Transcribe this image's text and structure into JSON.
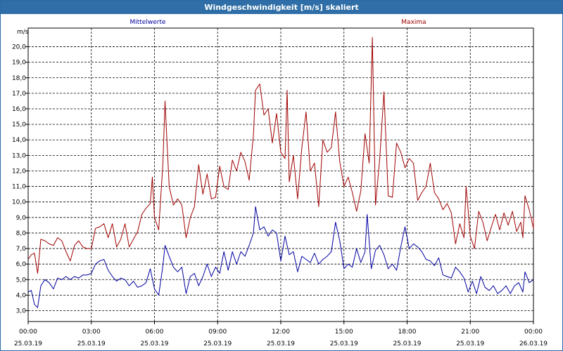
{
  "window": {
    "title": "Windgeschwindigkeit [m/s] skaliert"
  },
  "chart_data": {
    "type": "line",
    "title": "Windgeschwindigkeit [m/s] skaliert",
    "ylabel": "m/s",
    "xlabel": "",
    "ylim": [
      2.3,
      21.2
    ],
    "xlim": [
      0,
      24
    ],
    "grid": true,
    "legend_placement": "top",
    "yticks": [
      3.0,
      4.0,
      5.0,
      6.0,
      7.0,
      8.0,
      9.0,
      10.0,
      11.0,
      12.0,
      13.0,
      14.0,
      15.0,
      16.0,
      17.0,
      18.0,
      19.0,
      20.0
    ],
    "ytick_labels": [
      "3,0",
      "4,0",
      "5,0",
      "6,0",
      "7,0",
      "8,0",
      "9,0",
      "10,0",
      "11,0",
      "12,0",
      "13,0",
      "14,0",
      "15,0",
      "16,0",
      "17,0",
      "18,0",
      "19,0",
      "20,0"
    ],
    "xticks": [
      {
        "hours": 0,
        "time": "00:00",
        "date": "25.03.19"
      },
      {
        "hours": 3,
        "time": "03:00",
        "date": "25.03.19"
      },
      {
        "hours": 6,
        "time": "06:00",
        "date": "25.03.19"
      },
      {
        "hours": 9,
        "time": "09:00",
        "date": "25.03.19"
      },
      {
        "hours": 12,
        "time": "12:00",
        "date": "25.03.19"
      },
      {
        "hours": 15,
        "time": "15:00",
        "date": "25.03.19"
      },
      {
        "hours": 18,
        "time": "18:00",
        "date": "25.03.19"
      },
      {
        "hours": 21,
        "time": "21:00",
        "date": "25.03.19"
      },
      {
        "hours": 24,
        "time": "00:00",
        "date": "26.03.19"
      }
    ],
    "series": [
      {
        "name": "Mittelwerte",
        "color": "#0000a0",
        "points": [
          [
            0,
            4.2
          ],
          [
            0.15,
            4.3
          ],
          [
            0.3,
            3.4
          ],
          [
            0.45,
            3.2
          ],
          [
            0.6,
            4.6
          ],
          [
            0.8,
            5.0
          ],
          [
            1.0,
            4.8
          ],
          [
            1.2,
            4.4
          ],
          [
            1.4,
            5.1
          ],
          [
            1.6,
            5.0
          ],
          [
            1.8,
            5.2
          ],
          [
            2.0,
            5.0
          ],
          [
            2.2,
            5.2
          ],
          [
            2.4,
            5.1
          ],
          [
            2.6,
            5.3
          ],
          [
            2.8,
            5.3
          ],
          [
            3.0,
            5.4
          ],
          [
            3.2,
            6.0
          ],
          [
            3.4,
            6.2
          ],
          [
            3.6,
            6.3
          ],
          [
            3.8,
            5.6
          ],
          [
            4.0,
            5.2
          ],
          [
            4.2,
            4.9
          ],
          [
            4.4,
            5.1
          ],
          [
            4.6,
            5.0
          ],
          [
            4.8,
            4.6
          ],
          [
            5.0,
            4.9
          ],
          [
            5.2,
            4.5
          ],
          [
            5.4,
            4.6
          ],
          [
            5.6,
            4.8
          ],
          [
            5.8,
            5.7
          ],
          [
            6.0,
            4.4
          ],
          [
            6.2,
            4.0
          ],
          [
            6.4,
            5.9
          ],
          [
            6.5,
            7.2
          ],
          [
            6.7,
            6.5
          ],
          [
            6.9,
            5.8
          ],
          [
            7.1,
            5.5
          ],
          [
            7.3,
            5.8
          ],
          [
            7.5,
            4.1
          ],
          [
            7.7,
            5.2
          ],
          [
            7.9,
            5.4
          ],
          [
            8.1,
            4.6
          ],
          [
            8.3,
            5.2
          ],
          [
            8.5,
            6.0
          ],
          [
            8.7,
            5.2
          ],
          [
            8.9,
            5.8
          ],
          [
            9.1,
            5.4
          ],
          [
            9.3,
            6.8
          ],
          [
            9.5,
            5.6
          ],
          [
            9.7,
            6.8
          ],
          [
            9.9,
            6.0
          ],
          [
            10.1,
            6.8
          ],
          [
            10.3,
            6.5
          ],
          [
            10.5,
            7.2
          ],
          [
            10.7,
            8.0
          ],
          [
            10.8,
            9.7
          ],
          [
            11.0,
            8.2
          ],
          [
            11.2,
            8.4
          ],
          [
            11.4,
            7.8
          ],
          [
            11.6,
            8.2
          ],
          [
            11.8,
            8.0
          ],
          [
            12.0,
            6.2
          ],
          [
            12.2,
            7.8
          ],
          [
            12.4,
            6.6
          ],
          [
            12.6,
            6.8
          ],
          [
            12.8,
            5.5
          ],
          [
            13.0,
            6.5
          ],
          [
            13.2,
            6.3
          ],
          [
            13.4,
            6.1
          ],
          [
            13.6,
            6.7
          ],
          [
            13.8,
            6.0
          ],
          [
            14.0,
            6.3
          ],
          [
            14.2,
            6.5
          ],
          [
            14.4,
            6.8
          ],
          [
            14.6,
            8.7
          ],
          [
            14.8,
            7.5
          ],
          [
            15.0,
            5.7
          ],
          [
            15.2,
            6.0
          ],
          [
            15.4,
            5.8
          ],
          [
            15.6,
            7.0
          ],
          [
            15.8,
            6.1
          ],
          [
            16.0,
            6.8
          ],
          [
            16.1,
            9.2
          ],
          [
            16.3,
            5.7
          ],
          [
            16.5,
            6.9
          ],
          [
            16.7,
            7.2
          ],
          [
            16.9,
            6.6
          ],
          [
            17.1,
            5.7
          ],
          [
            17.3,
            6.0
          ],
          [
            17.5,
            5.6
          ],
          [
            17.7,
            7.1
          ],
          [
            17.9,
            8.4
          ],
          [
            18.1,
            7.0
          ],
          [
            18.3,
            7.3
          ],
          [
            18.5,
            7.1
          ],
          [
            18.7,
            6.8
          ],
          [
            18.9,
            6.3
          ],
          [
            19.1,
            6.2
          ],
          [
            19.3,
            5.9
          ],
          [
            19.5,
            6.4
          ],
          [
            19.7,
            5.3
          ],
          [
            19.9,
            5.2
          ],
          [
            20.1,
            5.1
          ],
          [
            20.3,
            5.8
          ],
          [
            20.5,
            5.5
          ],
          [
            20.7,
            5.1
          ],
          [
            20.9,
            4.2
          ],
          [
            21.1,
            4.9
          ],
          [
            21.3,
            4.1
          ],
          [
            21.5,
            5.2
          ],
          [
            21.7,
            4.5
          ],
          [
            21.9,
            4.3
          ],
          [
            22.1,
            4.6
          ],
          [
            22.3,
            4.1
          ],
          [
            22.5,
            4.3
          ],
          [
            22.7,
            4.6
          ],
          [
            22.9,
            4.1
          ],
          [
            23.1,
            4.6
          ],
          [
            23.3,
            4.8
          ],
          [
            23.5,
            4.2
          ],
          [
            23.6,
            5.5
          ],
          [
            23.8,
            4.8
          ],
          [
            24.0,
            5.0
          ]
        ]
      },
      {
        "name": "Maxima",
        "color": "#a00000",
        "points": [
          [
            0,
            6.3
          ],
          [
            0.15,
            6.6
          ],
          [
            0.3,
            6.7
          ],
          [
            0.45,
            5.4
          ],
          [
            0.6,
            7.6
          ],
          [
            0.8,
            7.5
          ],
          [
            1.0,
            7.3
          ],
          [
            1.2,
            7.2
          ],
          [
            1.4,
            7.7
          ],
          [
            1.6,
            7.5
          ],
          [
            1.8,
            6.8
          ],
          [
            2.0,
            6.2
          ],
          [
            2.2,
            7.2
          ],
          [
            2.4,
            7.5
          ],
          [
            2.6,
            7.1
          ],
          [
            2.8,
            7.0
          ],
          [
            3.0,
            7.0
          ],
          [
            3.2,
            8.3
          ],
          [
            3.4,
            8.4
          ],
          [
            3.6,
            8.6
          ],
          [
            3.8,
            7.7
          ],
          [
            4.0,
            8.6
          ],
          [
            4.2,
            7.1
          ],
          [
            4.4,
            7.6
          ],
          [
            4.6,
            8.6
          ],
          [
            4.8,
            7.1
          ],
          [
            5.0,
            7.6
          ],
          [
            5.2,
            8.1
          ],
          [
            5.4,
            9.2
          ],
          [
            5.6,
            9.6
          ],
          [
            5.8,
            9.9
          ],
          [
            5.9,
            11.6
          ],
          [
            6.0,
            9.0
          ],
          [
            6.2,
            8.2
          ],
          [
            6.4,
            12.5
          ],
          [
            6.5,
            16.5
          ],
          [
            6.7,
            11.0
          ],
          [
            6.9,
            9.8
          ],
          [
            7.1,
            10.2
          ],
          [
            7.3,
            9.8
          ],
          [
            7.5,
            7.7
          ],
          [
            7.7,
            9.0
          ],
          [
            7.9,
            9.7
          ],
          [
            8.1,
            12.4
          ],
          [
            8.3,
            10.5
          ],
          [
            8.5,
            11.8
          ],
          [
            8.7,
            10.2
          ],
          [
            8.9,
            10.3
          ],
          [
            9.1,
            12.3
          ],
          [
            9.3,
            11.0
          ],
          [
            9.5,
            10.8
          ],
          [
            9.7,
            12.7
          ],
          [
            9.9,
            12.0
          ],
          [
            10.1,
            13.2
          ],
          [
            10.3,
            12.6
          ],
          [
            10.5,
            11.4
          ],
          [
            10.7,
            14.3
          ],
          [
            10.8,
            17.2
          ],
          [
            11.0,
            17.6
          ],
          [
            11.2,
            15.6
          ],
          [
            11.4,
            16.0
          ],
          [
            11.6,
            13.8
          ],
          [
            11.8,
            15.7
          ],
          [
            12.0,
            13.2
          ],
          [
            12.2,
            12.8
          ],
          [
            12.3,
            17.2
          ],
          [
            12.4,
            11.3
          ],
          [
            12.6,
            13.0
          ],
          [
            12.8,
            10.2
          ],
          [
            13.0,
            13.5
          ],
          [
            13.2,
            15.8
          ],
          [
            13.4,
            12.0
          ],
          [
            13.6,
            12.5
          ],
          [
            13.8,
            9.7
          ],
          [
            14.0,
            14.0
          ],
          [
            14.2,
            13.2
          ],
          [
            14.4,
            13.5
          ],
          [
            14.6,
            15.8
          ],
          [
            14.8,
            12.6
          ],
          [
            15.0,
            11.0
          ],
          [
            15.2,
            11.6
          ],
          [
            15.4,
            10.6
          ],
          [
            15.6,
            9.4
          ],
          [
            15.8,
            10.7
          ],
          [
            16.0,
            14.4
          ],
          [
            16.2,
            12.5
          ],
          [
            16.35,
            20.6
          ],
          [
            16.5,
            9.8
          ],
          [
            16.7,
            12.8
          ],
          [
            16.9,
            17.1
          ],
          [
            17.1,
            10.4
          ],
          [
            17.3,
            10.3
          ],
          [
            17.5,
            13.8
          ],
          [
            17.7,
            13.2
          ],
          [
            17.9,
            12.2
          ],
          [
            18.1,
            12.8
          ],
          [
            18.3,
            12.5
          ],
          [
            18.5,
            10.1
          ],
          [
            18.7,
            10.6
          ],
          [
            18.9,
            11.0
          ],
          [
            19.1,
            12.5
          ],
          [
            19.3,
            10.6
          ],
          [
            19.5,
            10.2
          ],
          [
            19.7,
            9.5
          ],
          [
            19.9,
            9.9
          ],
          [
            20.1,
            9.3
          ],
          [
            20.3,
            7.3
          ],
          [
            20.5,
            8.6
          ],
          [
            20.7,
            7.7
          ],
          [
            20.8,
            11.0
          ],
          [
            21.0,
            7.8
          ],
          [
            21.2,
            7.0
          ],
          [
            21.4,
            9.4
          ],
          [
            21.6,
            8.7
          ],
          [
            21.8,
            7.5
          ],
          [
            22.0,
            8.4
          ],
          [
            22.2,
            9.2
          ],
          [
            22.4,
            8.2
          ],
          [
            22.6,
            9.3
          ],
          [
            22.8,
            8.5
          ],
          [
            23.0,
            9.4
          ],
          [
            23.2,
            8.1
          ],
          [
            23.4,
            8.7
          ],
          [
            23.5,
            7.7
          ],
          [
            23.6,
            10.4
          ],
          [
            23.8,
            9.5
          ],
          [
            24.0,
            8.3
          ],
          [
            24.2,
            9.0
          ]
        ]
      }
    ]
  }
}
